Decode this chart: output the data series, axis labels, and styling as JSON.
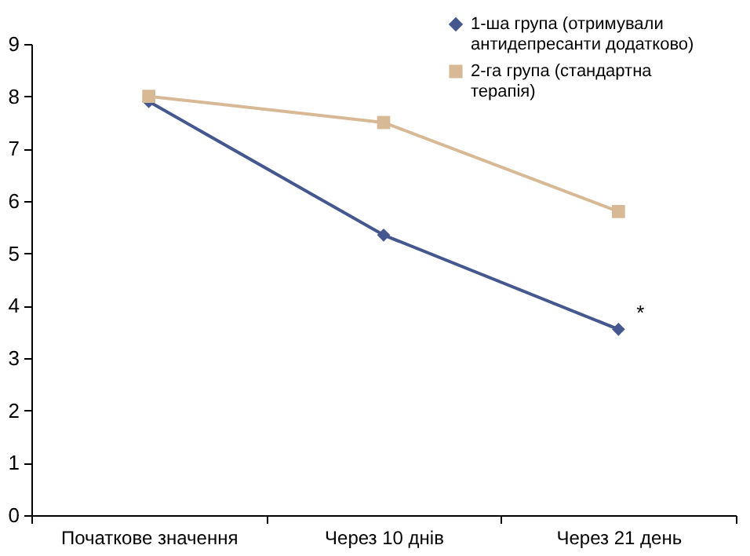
{
  "chart_data": {
    "type": "line",
    "categories": [
      "Початкове значення",
      "Через 10 днів",
      "Через 21 день"
    ],
    "series": [
      {
        "name": "1-ша група (отримували антидепресанти додатково)",
        "color": "#44578f",
        "marker": "diamond",
        "values": [
          7.9,
          5.35,
          3.55
        ]
      },
      {
        "name": "2-га група (стандартна терапія)",
        "color": "#d8b995",
        "marker": "square",
        "values": [
          8.0,
          7.5,
          5.8
        ]
      }
    ],
    "ylim": [
      0,
      9
    ],
    "yticks": [
      0,
      1,
      2,
      3,
      4,
      5,
      6,
      7,
      8,
      9
    ],
    "grid": false,
    "legend": "top right",
    "line_style": "solid",
    "annotations": [
      {
        "text": "*",
        "x": "Через 21 день",
        "y": 3.55
      }
    ]
  }
}
